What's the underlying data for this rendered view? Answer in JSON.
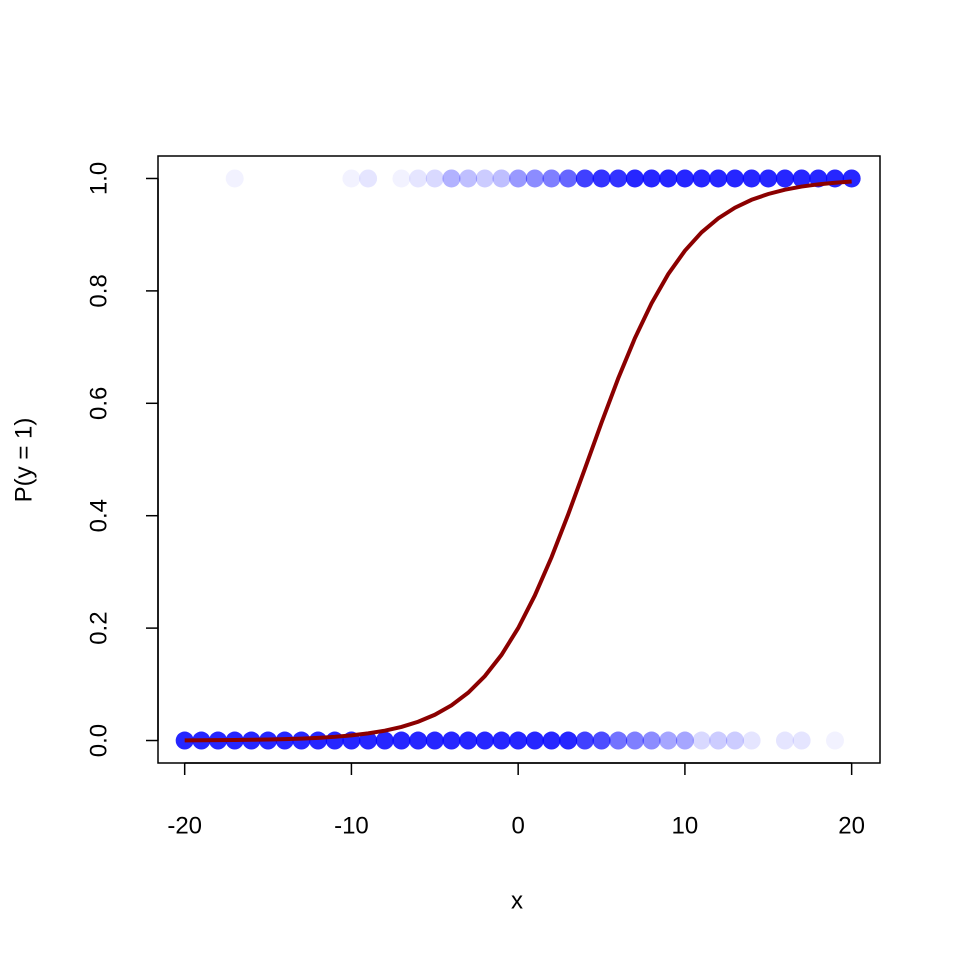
{
  "chart_data": {
    "type": "scatter",
    "xlabel": "x",
    "ylabel": "P(y = 1)",
    "xlim": [
      -21.6,
      21.7
    ],
    "ylim": [
      -0.04,
      1.04
    ],
    "xticks": [
      -20,
      -10,
      0,
      10,
      20
    ],
    "yticks": [
      {
        "value": 0,
        "label": "0.0"
      },
      0.2,
      0.4,
      0.6,
      0.8,
      {
        "value": 1,
        "label": "1.0"
      }
    ],
    "series": [
      {
        "color": "#0000ff",
        "x": [
          -17,
          -10,
          -9,
          -7,
          -6,
          -5,
          -4,
          -3,
          -2,
          -1,
          0,
          1,
          2,
          3,
          4,
          5,
          6,
          7,
          8,
          9,
          10,
          11,
          12,
          13,
          14,
          15,
          16,
          17,
          18,
          19,
          20
        ],
        "values": [
          1,
          1,
          1,
          1,
          1,
          1,
          1,
          1,
          1,
          1,
          1,
          1,
          1,
          1,
          1,
          1,
          1,
          1,
          1,
          1,
          1,
          1,
          1,
          1,
          1,
          1,
          1,
          1,
          1,
          1,
          1
        ],
        "alpha": [
          0.05,
          0.05,
          0.1,
          0.05,
          0.1,
          0.15,
          0.3,
          0.25,
          0.2,
          0.25,
          0.4,
          0.45,
          0.5,
          0.6,
          0.75,
          0.8,
          0.8,
          0.85,
          0.85,
          0.85,
          0.85,
          0.85,
          0.85,
          0.85,
          0.85,
          0.85,
          0.85,
          0.85,
          0.85,
          0.85,
          0.85
        ]
      },
      {
        "color": "#0000ff",
        "x": [
          -20,
          -19,
          -18,
          -17,
          -16,
          -15,
          -14,
          -13,
          -12,
          -11,
          -10,
          -9,
          -8,
          -7,
          -6,
          -5,
          -4,
          -3,
          -2,
          -1,
          0,
          1,
          2,
          3,
          4,
          5,
          6,
          7,
          8,
          9,
          10,
          11,
          12,
          13,
          14,
          16,
          17,
          19
        ],
        "values": [
          0,
          0,
          0,
          0,
          0,
          0,
          0,
          0,
          0,
          0,
          0,
          0,
          0,
          0,
          0,
          0,
          0,
          0,
          0,
          0,
          0,
          0,
          0,
          0,
          0,
          0,
          0,
          0,
          0,
          0,
          0,
          0,
          0,
          0,
          0,
          0,
          0,
          0
        ],
        "alpha": [
          0.85,
          0.85,
          0.85,
          0.85,
          0.85,
          0.85,
          0.85,
          0.85,
          0.85,
          0.85,
          0.85,
          0.85,
          0.85,
          0.85,
          0.85,
          0.85,
          0.85,
          0.85,
          0.85,
          0.85,
          0.85,
          0.85,
          0.85,
          0.85,
          0.75,
          0.7,
          0.55,
          0.5,
          0.45,
          0.35,
          0.35,
          0.15,
          0.2,
          0.2,
          0.1,
          0.1,
          0.1,
          0.05
        ]
      }
    ],
    "fit": {
      "type": "line",
      "color": "#8b0000",
      "x": [
        -20,
        -19,
        -18,
        -17,
        -16,
        -15,
        -14,
        -13,
        -12,
        -11,
        -10,
        -9,
        -8,
        -7,
        -6,
        -5,
        -4,
        -3,
        -2,
        -1,
        0,
        1,
        2,
        3,
        4,
        5,
        6,
        7,
        8,
        9,
        10,
        11,
        12,
        13,
        14,
        15,
        16,
        17,
        18,
        19,
        20
      ],
      "values": [
        0.0003,
        0.0005,
        0.0007,
        0.0009,
        0.0013,
        0.0018,
        0.0025,
        0.0034,
        0.0048,
        0.0066,
        0.0091,
        0.0127,
        0.0175,
        0.0242,
        0.0334,
        0.0458,
        0.0626,
        0.085,
        0.1145,
        0.1523,
        0.2,
        0.2581,
        0.3261,
        0.4023,
        0.4835,
        0.5656,
        0.6443,
        0.7159,
        0.778,
        0.8298,
        0.8715,
        0.9042,
        0.9291,
        0.948,
        0.9621,
        0.9724,
        0.98,
        0.9856,
        0.9896,
        0.9925,
        0.9946
      ]
    }
  }
}
